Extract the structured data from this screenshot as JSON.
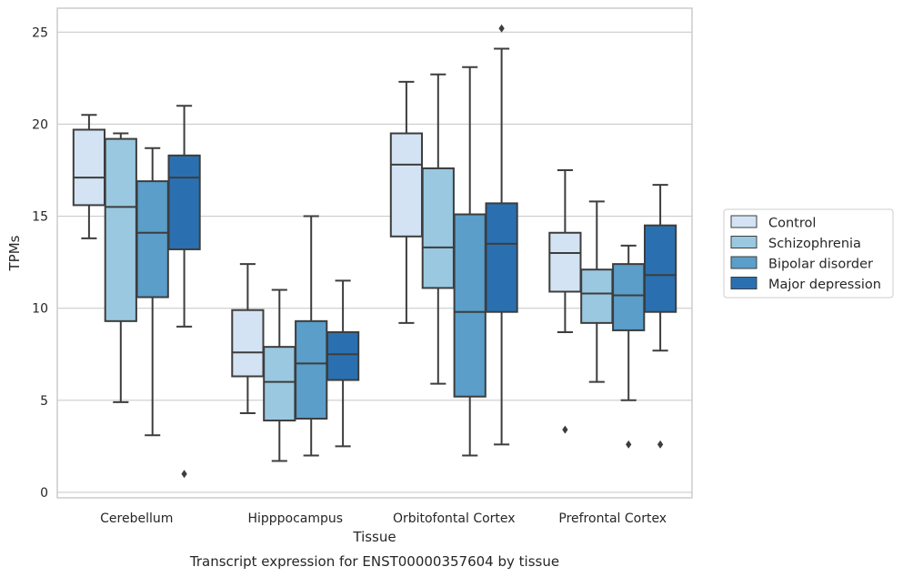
{
  "caption": "Transcript expression for ENST00000357604 by tissue",
  "chart_data": {
    "type": "box",
    "xlabel": "Tissue",
    "ylabel": "TPMs",
    "ylim": [
      -0.3,
      26.3
    ],
    "yticks": [
      0,
      5,
      10,
      15,
      20,
      25
    ],
    "grid": "horizontal",
    "legend_position": "right",
    "categories": [
      "Cerebellum",
      "Hipppocampus",
      "Orbitofontal Cortex",
      "Prefrontal Cortex"
    ],
    "series": [
      {
        "name": "Control",
        "color": "#d3e3f3",
        "boxes": [
          {
            "whisker_low": 13.8,
            "q1": 15.6,
            "median": 17.1,
            "q3": 19.7,
            "whisker_high": 20.5,
            "outliers": []
          },
          {
            "whisker_low": 4.3,
            "q1": 6.3,
            "median": 7.6,
            "q3": 9.9,
            "whisker_high": 12.4,
            "outliers": []
          },
          {
            "whisker_low": 9.2,
            "q1": 13.9,
            "median": 17.8,
            "q3": 19.5,
            "whisker_high": 22.3,
            "outliers": []
          },
          {
            "whisker_low": 8.7,
            "q1": 10.9,
            "median": 13.0,
            "q3": 14.1,
            "whisker_high": 17.5,
            "outliers": [
              3.4
            ]
          }
        ]
      },
      {
        "name": "Schizophrenia",
        "color": "#9ac8e0",
        "boxes": [
          {
            "whisker_low": 4.9,
            "q1": 9.3,
            "median": 15.5,
            "q3": 19.2,
            "whisker_high": 19.5,
            "outliers": []
          },
          {
            "whisker_low": 1.7,
            "q1": 3.9,
            "median": 6.0,
            "q3": 7.9,
            "whisker_high": 11.0,
            "outliers": []
          },
          {
            "whisker_low": 5.9,
            "q1": 11.1,
            "median": 13.3,
            "q3": 17.6,
            "whisker_high": 22.7,
            "outliers": []
          },
          {
            "whisker_low": 6.0,
            "q1": 9.2,
            "median": 10.8,
            "q3": 12.1,
            "whisker_high": 15.8,
            "outliers": []
          }
        ]
      },
      {
        "name": "Bipolar disorder",
        "color": "#5a9ec9",
        "boxes": [
          {
            "whisker_low": 3.1,
            "q1": 10.6,
            "median": 14.1,
            "q3": 16.9,
            "whisker_high": 18.7,
            "outliers": []
          },
          {
            "whisker_low": 2.0,
            "q1": 4.0,
            "median": 7.0,
            "q3": 9.3,
            "whisker_high": 15.0,
            "outliers": []
          },
          {
            "whisker_low": 2.0,
            "q1": 5.2,
            "median": 9.8,
            "q3": 15.1,
            "whisker_high": 23.1,
            "outliers": []
          },
          {
            "whisker_low": 5.0,
            "q1": 8.8,
            "median": 10.7,
            "q3": 12.4,
            "whisker_high": 13.4,
            "outliers": [
              2.6
            ]
          }
        ]
      },
      {
        "name": "Major depression",
        "color": "#2a70b1",
        "boxes": [
          {
            "whisker_low": 9.0,
            "q1": 13.2,
            "median": 17.1,
            "q3": 18.3,
            "whisker_high": 21.0,
            "outliers": [
              1.0
            ]
          },
          {
            "whisker_low": 2.5,
            "q1": 6.1,
            "median": 7.5,
            "q3": 8.7,
            "whisker_high": 11.5,
            "outliers": []
          },
          {
            "whisker_low": 2.6,
            "q1": 9.8,
            "median": 13.5,
            "q3": 15.7,
            "whisker_high": 24.1,
            "outliers": [
              25.2
            ]
          },
          {
            "whisker_low": 7.7,
            "q1": 9.8,
            "median": 11.8,
            "q3": 14.5,
            "whisker_high": 16.7,
            "outliers": [
              2.6
            ]
          }
        ]
      }
    ]
  }
}
